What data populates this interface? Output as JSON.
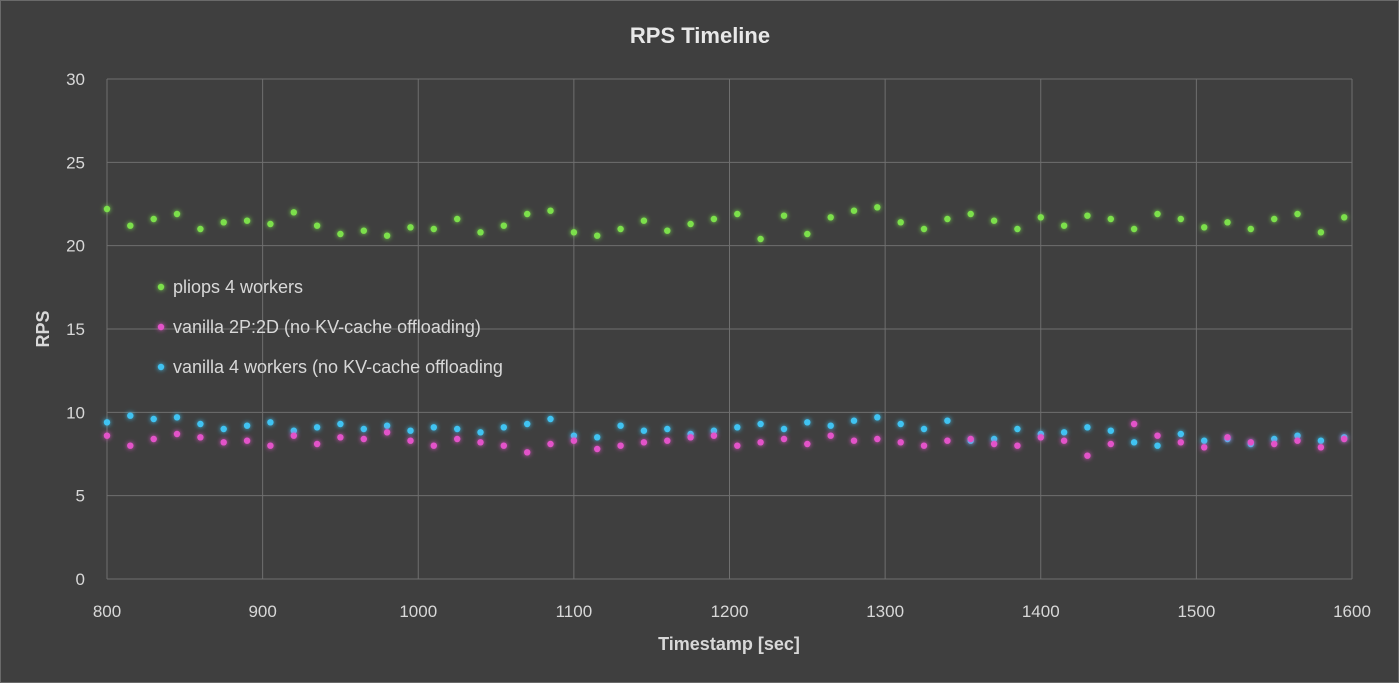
{
  "chart_data": {
    "type": "scatter",
    "title": "RPS Timeline",
    "xlabel": "Timestamp [sec]",
    "ylabel": "RPS",
    "xlim": [
      800,
      1600
    ],
    "ylim": [
      0,
      30
    ],
    "x_ticks": [
      800,
      900,
      1000,
      1100,
      1200,
      1300,
      1400,
      1500,
      1600
    ],
    "y_ticks": [
      0,
      5,
      10,
      15,
      20,
      25,
      30
    ],
    "grid": true,
    "legend_position": "middle-left",
    "series": [
      {
        "name": "pliops 4 workers",
        "color": "#7be04c",
        "x": [
          800,
          815,
          830,
          845,
          860,
          875,
          890,
          905,
          920,
          935,
          950,
          965,
          980,
          995,
          1010,
          1025,
          1040,
          1055,
          1070,
          1085,
          1100,
          1115,
          1130,
          1145,
          1160,
          1175,
          1190,
          1205,
          1220,
          1235,
          1250,
          1265,
          1280,
          1295,
          1310,
          1325,
          1340,
          1355,
          1370,
          1385,
          1400,
          1415,
          1430,
          1445,
          1460,
          1475,
          1490,
          1505,
          1520,
          1535,
          1550,
          1565,
          1580,
          1595
        ],
        "y": [
          22.2,
          21.2,
          21.6,
          21.9,
          21.0,
          21.4,
          21.5,
          21.3,
          22.0,
          21.2,
          20.7,
          20.9,
          20.6,
          21.1,
          21.0,
          21.6,
          20.8,
          21.2,
          21.9,
          22.1,
          20.8,
          20.6,
          21.0,
          21.5,
          20.9,
          21.3,
          21.6,
          21.9,
          20.4,
          21.8,
          20.7,
          21.7,
          22.1,
          22.3,
          21.4,
          21.0,
          21.6,
          21.9,
          21.5,
          21.0,
          21.7,
          21.2,
          21.8,
          21.6,
          21.0,
          21.9,
          21.6,
          21.1,
          21.4,
          21.0,
          21.6,
          21.9,
          20.8,
          21.7
        ]
      },
      {
        "name": "vanilla 2P:2D  (no KV-cache offloading)",
        "color": "#e353c9",
        "x": [
          800,
          815,
          830,
          845,
          860,
          875,
          890,
          905,
          920,
          935,
          950,
          965,
          980,
          995,
          1010,
          1025,
          1040,
          1055,
          1070,
          1085,
          1100,
          1115,
          1130,
          1145,
          1160,
          1175,
          1190,
          1205,
          1220,
          1235,
          1250,
          1265,
          1280,
          1295,
          1310,
          1325,
          1340,
          1355,
          1370,
          1385,
          1400,
          1415,
          1430,
          1445,
          1460,
          1475,
          1490,
          1505,
          1520,
          1535,
          1550,
          1565,
          1580,
          1595
        ],
        "y": [
          8.6,
          8.0,
          8.4,
          8.7,
          8.5,
          8.2,
          8.3,
          8.0,
          8.6,
          8.1,
          8.5,
          8.4,
          8.8,
          8.3,
          8.0,
          8.4,
          8.2,
          8.0,
          7.6,
          8.1,
          8.3,
          7.8,
          8.0,
          8.2,
          8.3,
          8.5,
          8.6,
          8.0,
          8.2,
          8.4,
          8.1,
          8.6,
          8.3,
          8.4,
          8.2,
          8.0,
          8.3,
          8.4,
          8.1,
          8.0,
          8.5,
          8.3,
          7.4,
          8.1,
          9.3,
          8.6,
          8.2,
          7.9,
          8.5,
          8.2,
          8.1,
          8.3,
          7.9,
          8.4
        ]
      },
      {
        "name": "vanilla 4 workers (no KV-cache offloading",
        "color": "#3fc3f2",
        "x": [
          800,
          815,
          830,
          845,
          860,
          875,
          890,
          905,
          920,
          935,
          950,
          965,
          980,
          995,
          1010,
          1025,
          1040,
          1055,
          1070,
          1085,
          1100,
          1115,
          1130,
          1145,
          1160,
          1175,
          1190,
          1205,
          1220,
          1235,
          1250,
          1265,
          1280,
          1295,
          1310,
          1325,
          1340,
          1355,
          1370,
          1385,
          1400,
          1415,
          1430,
          1445,
          1460,
          1475,
          1490,
          1505,
          1520,
          1535,
          1550,
          1565,
          1580,
          1595
        ],
        "y": [
          9.4,
          9.8,
          9.6,
          9.7,
          9.3,
          9.0,
          9.2,
          9.4,
          8.9,
          9.1,
          9.3,
          9.0,
          9.2,
          8.9,
          9.1,
          9.0,
          8.8,
          9.1,
          9.3,
          9.6,
          8.6,
          8.5,
          9.2,
          8.9,
          9.0,
          8.7,
          8.9,
          9.1,
          9.3,
          9.0,
          9.4,
          9.2,
          9.5,
          9.7,
          9.3,
          9.0,
          9.5,
          8.3,
          8.4,
          9.0,
          8.7,
          8.8,
          9.1,
          8.9,
          8.2,
          8.0,
          8.7,
          8.3,
          8.4,
          8.1,
          8.4,
          8.6,
          8.3,
          8.5
        ]
      }
    ]
  }
}
